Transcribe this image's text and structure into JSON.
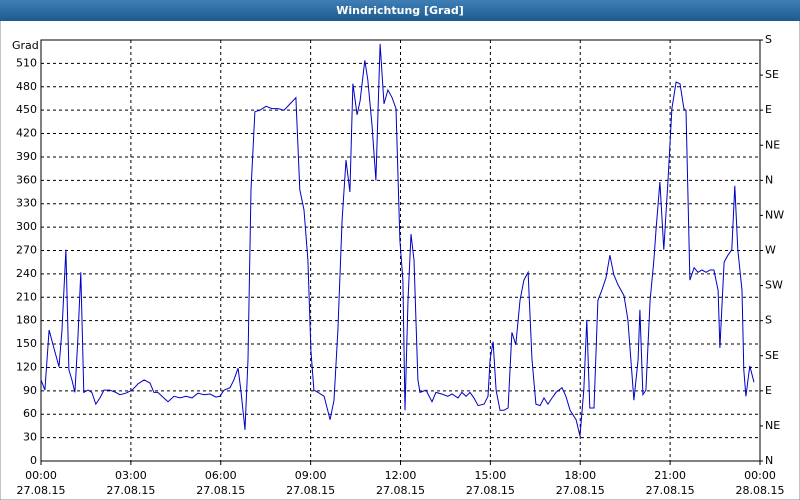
{
  "chart_data": {
    "type": "line",
    "title": "Windrichtung [Grad]",
    "ylabel": "Grad",
    "color": "#0000c8",
    "grid": true,
    "xlim": [
      0,
      24
    ],
    "xticks": [
      {
        "value": 0,
        "label": "00:00",
        "date": "27.08.15"
      },
      {
        "value": 3,
        "label": "03:00",
        "date": "27.08.15"
      },
      {
        "value": 6,
        "label": "06:00",
        "date": "27.08.15"
      },
      {
        "value": 9,
        "label": "09:00",
        "date": "27.08.15"
      },
      {
        "value": 12,
        "label": "12:00",
        "date": "27.08.15"
      },
      {
        "value": 15,
        "label": "15:00",
        "date": "27.08.15"
      },
      {
        "value": 18,
        "label": "18:00",
        "date": "27.08.15"
      },
      {
        "value": 21,
        "label": "21:00",
        "date": "27.08.15"
      },
      {
        "value": 24,
        "label": "00:00",
        "date": "28.08.15"
      }
    ],
    "ylim": [
      0,
      540
    ],
    "yticks": [
      0,
      30,
      60,
      90,
      120,
      150,
      180,
      210,
      240,
      270,
      300,
      330,
      360,
      390,
      420,
      450,
      480,
      510
    ],
    "y2lim": [
      0,
      540
    ],
    "y2ticks": [
      {
        "value": 0,
        "label": "N"
      },
      {
        "value": 45,
        "label": "NE"
      },
      {
        "value": 90,
        "label": "E"
      },
      {
        "value": 135,
        "label": "SE"
      },
      {
        "value": 180,
        "label": "S"
      },
      {
        "value": 225,
        "label": "SW"
      },
      {
        "value": 270,
        "label": "W"
      },
      {
        "value": 315,
        "label": "NW"
      },
      {
        "value": 360,
        "label": "N"
      },
      {
        "value": 405,
        "label": "NE"
      },
      {
        "value": 450,
        "label": "E"
      },
      {
        "value": 495,
        "label": "SE"
      },
      {
        "value": 540,
        "label": "S"
      }
    ],
    "x": [
      0,
      0.13,
      0.27,
      0.4,
      0.6,
      0.7,
      0.83,
      0.93,
      1.03,
      1.13,
      1.23,
      1.33,
      1.43,
      1.57,
      1.7,
      1.83,
      1.97,
      2.1,
      2.3,
      2.5,
      2.63,
      2.83,
      3.04,
      3.24,
      3.44,
      3.64,
      3.77,
      3.9,
      4.04,
      4.24,
      4.44,
      4.64,
      4.84,
      5.04,
      5.24,
      5.44,
      5.64,
      5.84,
      5.97,
      6.11,
      6.31,
      6.44,
      6.58,
      6.68,
      6.81,
      6.91,
      7.01,
      7.14,
      7.31,
      7.51,
      7.71,
      7.91,
      8.11,
      8.31,
      8.51,
      8.64,
      8.78,
      8.91,
      9.01,
      9.11,
      9.25,
      9.45,
      9.65,
      9.78,
      9.91,
      10.05,
      10.18,
      10.31,
      10.41,
      10.55,
      10.65,
      10.81,
      10.91,
      11.05,
      11.18,
      11.32,
      11.45,
      11.58,
      11.72,
      11.85,
      11.98,
      12.08,
      12.15,
      12.25,
      12.35,
      12.45,
      12.58,
      12.65,
      12.85,
      13.05,
      13.18,
      13.38,
      13.58,
      13.72,
      13.92,
      14.05,
      14.19,
      14.32,
      14.45,
      14.59,
      14.79,
      14.92,
      14.99,
      15.09,
      15.19,
      15.32,
      15.45,
      15.59,
      15.72,
      15.85,
      15.99,
      16.12,
      16.26,
      16.39,
      16.52,
      16.66,
      16.79,
      16.92,
      17.06,
      17.19,
      17.39,
      17.52,
      17.66,
      17.86,
      17.99,
      18.12,
      18.22,
      18.32,
      18.46,
      18.59,
      18.72,
      18.86,
      18.99,
      19.12,
      19.26,
      19.46,
      19.59,
      19.79,
      19.93,
      19.99,
      20.09,
      20.19,
      20.33,
      20.46,
      20.53,
      20.66,
      20.79,
      20.93,
      21.06,
      21.2,
      21.33,
      21.46,
      21.53,
      21.66,
      21.8,
      21.93,
      22.06,
      22.2,
      22.33,
      22.46,
      22.6,
      22.66,
      22.8,
      22.93,
      23.06,
      23.16,
      23.26,
      23.4,
      23.46,
      23.53,
      23.66,
      23.8
    ],
    "values": [
      104,
      91,
      168,
      149,
      121,
      168,
      271,
      117,
      104,
      88,
      155,
      242,
      88,
      91,
      88,
      73,
      81,
      91,
      91,
      88,
      85,
      87,
      91,
      99,
      104,
      100,
      88,
      88,
      83,
      76,
      83,
      81,
      83,
      81,
      87,
      85,
      86,
      82,
      83,
      91,
      94,
      104,
      119,
      88,
      40,
      130,
      348,
      448,
      450,
      455,
      452,
      452,
      450,
      458,
      466,
      348,
      322,
      258,
      142,
      91,
      88,
      83,
      53,
      78,
      168,
      309,
      386,
      345,
      484,
      444,
      462,
      514,
      489,
      431,
      360,
      535,
      458,
      476,
      466,
      452,
      283,
      232,
      65,
      206,
      291,
      258,
      104,
      88,
      91,
      76,
      88,
      86,
      83,
      86,
      81,
      88,
      83,
      88,
      81,
      71,
      73,
      83,
      130,
      153,
      91,
      65,
      65,
      68,
      165,
      149,
      206,
      232,
      242,
      130,
      73,
      71,
      81,
      73,
      81,
      88,
      94,
      83,
      65,
      53,
      32,
      91,
      181,
      68,
      68,
      206,
      219,
      235,
      264,
      239,
      226,
      212,
      181,
      78,
      130,
      194,
      85,
      91,
      206,
      258,
      296,
      358,
      271,
      360,
      452,
      486,
      484,
      452,
      450,
      232,
      248,
      242,
      245,
      242,
      245,
      245,
      219,
      145,
      255,
      264,
      271,
      353,
      271,
      219,
      117,
      83,
      122,
      101
    ]
  }
}
